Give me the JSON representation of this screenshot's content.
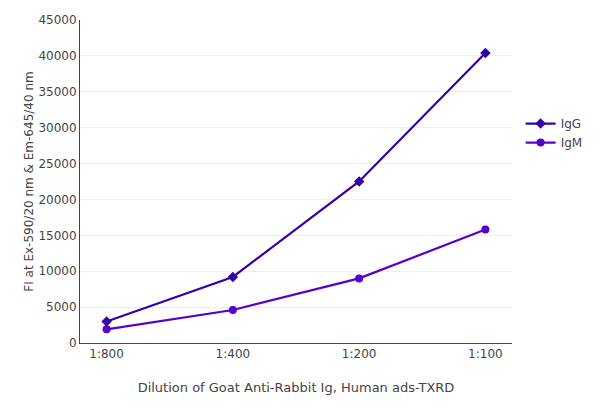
{
  "chart_data": {
    "type": "line",
    "categories": [
      "1:800",
      "1:400",
      "1:200",
      "1:100"
    ],
    "series": [
      {
        "name": "IgG",
        "color": "#3300AA",
        "marker": "diamond",
        "values": [
          3000,
          9200,
          22500,
          40400
        ]
      },
      {
        "name": "IgM",
        "color": "#5500CC",
        "marker": "circle",
        "values": [
          1900,
          4600,
          9000,
          15800
        ]
      }
    ],
    "xlabel": "Dilution of Goat Anti-Rabbit Ig, Human ads-TXRD",
    "ylabel": "FI at Ex-590/20 nm & Em-645/40 nm",
    "ylim": [
      0,
      45000
    ],
    "yticks": [
      0,
      5000,
      10000,
      15000,
      20000,
      25000,
      30000,
      35000,
      40000,
      45000
    ],
    "grid": true,
    "legend": "right"
  }
}
